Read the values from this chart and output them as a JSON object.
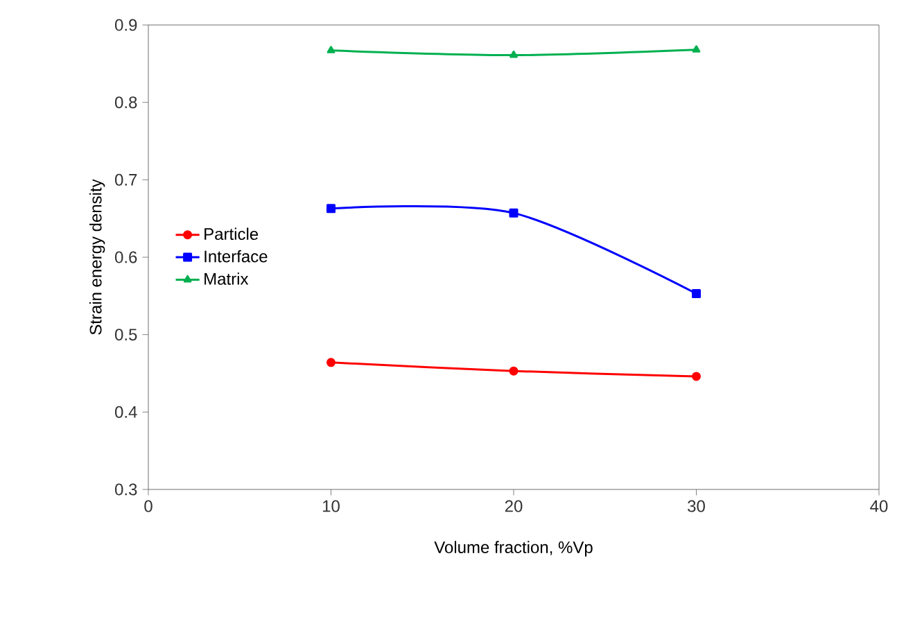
{
  "chart_data": {
    "type": "line",
    "xlabel": "Volume fraction, %Vp",
    "ylabel": "Strain energy density",
    "x": [
      10,
      20,
      30
    ],
    "series": [
      {
        "name": "Particle",
        "color": "#ff0000",
        "marker": "circle",
        "values": [
          0.464,
          0.453,
          0.446
        ]
      },
      {
        "name": "Interface",
        "color": "#0000ff",
        "marker": "square",
        "values": [
          0.663,
          0.657,
          0.553
        ]
      },
      {
        "name": "Matrix",
        "color": "#00b050",
        "marker": "triangle",
        "values": [
          0.867,
          0.861,
          0.868
        ]
      }
    ],
    "xlim": [
      0,
      40
    ],
    "xticks": [
      0,
      10,
      20,
      30,
      40
    ],
    "ylim": [
      0.3,
      0.9
    ],
    "yticks": [
      0.3,
      0.4,
      0.5,
      0.6,
      0.7,
      0.8,
      0.9
    ],
    "grid": false,
    "legend": "left",
    "line_style": "solid"
  }
}
